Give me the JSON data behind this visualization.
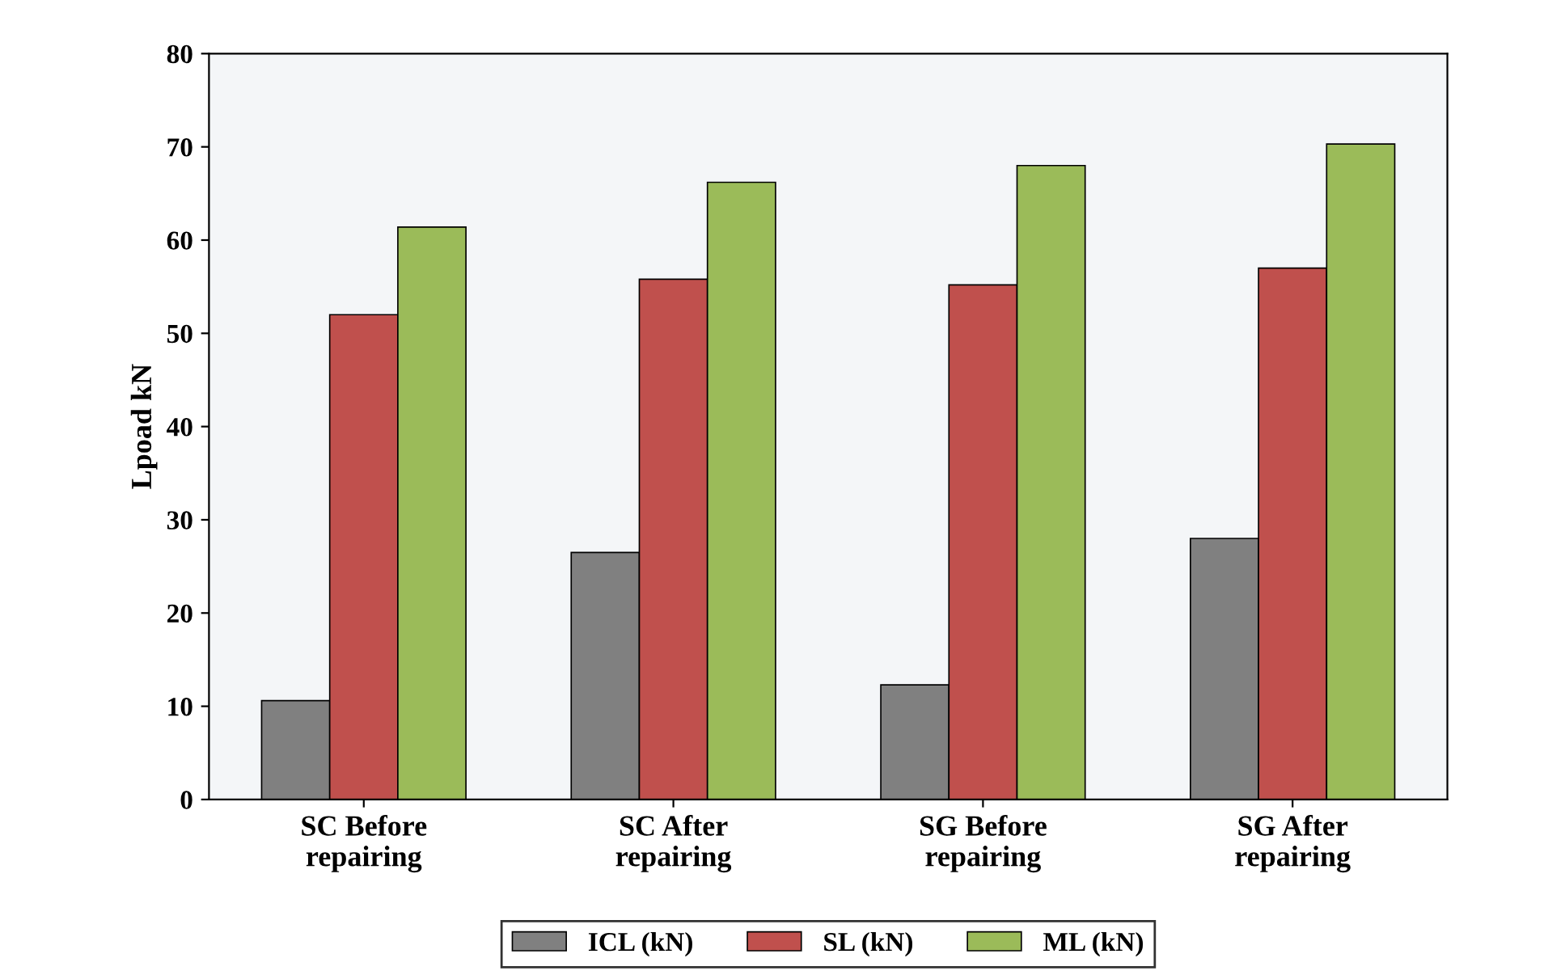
{
  "chart_data": {
    "type": "bar",
    "ylabel": "Lpoad kN",
    "categories": [
      "SC Before\nrepairing",
      "SC After\nrepairing",
      "SG Before\nrepairing",
      "SG After\nrepairing"
    ],
    "series": [
      {
        "name": "ICL (kN)",
        "color": "#808080",
        "values": [
          10.6,
          26.5,
          12.3,
          28.0
        ]
      },
      {
        "name": "SL (kN)",
        "color": "#c0504d",
        "values": [
          52.0,
          55.8,
          55.2,
          57.0
        ]
      },
      {
        "name": "ML (kN)",
        "color": "#9bbb59",
        "values": [
          61.4,
          66.2,
          68.0,
          70.3
        ]
      }
    ],
    "ylim": [
      0,
      80
    ],
    "yticks": [
      0,
      10,
      20,
      30,
      40,
      50,
      60,
      70,
      80
    ],
    "grid": false,
    "legend": "bottom"
  }
}
